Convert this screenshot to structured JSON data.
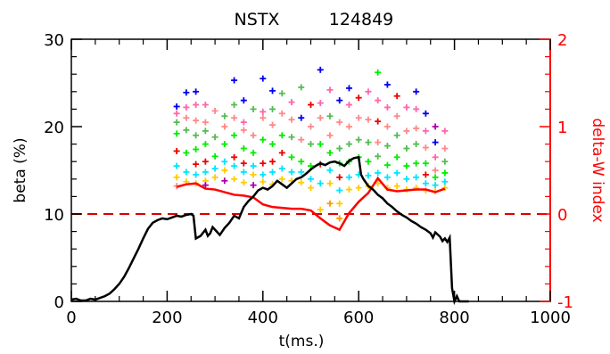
{
  "chart_data": {
    "type": "scatter",
    "title_left": "NSTX",
    "title_right": "124849",
    "xlabel": "t(ms.)",
    "ylabel": "beta   (%)",
    "ylabel_right": "delta-W index",
    "xlim": [
      0,
      1000
    ],
    "ylim": [
      0,
      30
    ],
    "ylim_right": [
      -1,
      2
    ],
    "x_ticks": [
      "0",
      "200",
      "400",
      "600",
      "800",
      "1000"
    ],
    "y_ticks": [
      "0",
      "10",
      "20",
      "30"
    ],
    "y_ticks_right": [
      "-1",
      "0",
      "1",
      "2"
    ],
    "colors": {
      "beta": "#000000",
      "right_axis": "#ff0000",
      "dw": "#ff0000",
      "zero_line": "#dd0000"
    },
    "marker_palette": [
      "#0000ee",
      "#ff66aa",
      "#ff8888",
      "#55bb55",
      "#00ee00",
      "#ee0000",
      "#00e5ff",
      "#ffcc00",
      "#aa00aa",
      "#ff9900"
    ],
    "beta_series": {
      "name": "beta",
      "x": [
        0,
        10,
        20,
        30,
        40,
        50,
        60,
        70,
        80,
        90,
        100,
        110,
        120,
        130,
        140,
        150,
        160,
        170,
        180,
        190,
        200,
        210,
        220,
        230,
        240,
        250,
        255,
        260,
        270,
        280,
        285,
        290,
        295,
        300,
        310,
        320,
        330,
        340,
        350,
        360,
        370,
        380,
        390,
        400,
        410,
        420,
        430,
        440,
        450,
        460,
        470,
        480,
        490,
        500,
        510,
        520,
        530,
        540,
        550,
        560,
        570,
        580,
        590,
        600,
        605,
        610,
        620,
        630,
        640,
        650,
        660,
        670,
        680,
        690,
        700,
        710,
        720,
        730,
        740,
        750,
        755,
        760,
        770,
        775,
        780,
        785,
        790,
        795,
        800,
        805,
        810,
        820,
        830
      ],
      "y": [
        0.2,
        0.3,
        0.1,
        0.1,
        0.3,
        0.2,
        0.4,
        0.6,
        0.9,
        1.4,
        2.0,
        2.8,
        3.8,
        4.9,
        6.0,
        7.2,
        8.3,
        9.0,
        9.3,
        9.5,
        9.4,
        9.6,
        9.8,
        9.7,
        9.9,
        10.0,
        9.8,
        7.2,
        7.5,
        8.2,
        7.5,
        7.8,
        8.5,
        8.2,
        7.6,
        8.4,
        9.0,
        9.8,
        9.5,
        10.8,
        11.5,
        12.0,
        12.7,
        13.0,
        12.8,
        13.2,
        13.8,
        13.4,
        13.0,
        13.5,
        14.0,
        14.2,
        14.6,
        15.1,
        15.5,
        15.8,
        15.6,
        15.9,
        16.0,
        15.8,
        15.5,
        16.1,
        16.4,
        16.5,
        14.5,
        14.0,
        13.2,
        12.8,
        12.2,
        11.8,
        11.2,
        10.8,
        10.3,
        9.9,
        9.6,
        9.2,
        8.9,
        8.5,
        8.2,
        7.8,
        7.3,
        7.9,
        7.4,
        6.9,
        7.2,
        6.8,
        7.3,
        1.5,
        0.0,
        0.6,
        0.0,
        0.0,
        0.0
      ]
    },
    "dw_series": {
      "name": "delta-W index",
      "x": [
        220,
        240,
        260,
        280,
        300,
        340,
        360,
        380,
        400,
        420,
        440,
        460,
        480,
        500,
        520,
        540,
        560,
        580,
        600,
        620,
        640,
        660,
        680,
        700,
        720,
        740,
        760,
        780
      ],
      "y": [
        0.31,
        0.34,
        0.35,
        0.29,
        0.28,
        0.22,
        0.21,
        0.19,
        0.11,
        0.08,
        0.07,
        0.06,
        0.06,
        0.04,
        -0.05,
        -0.13,
        -0.18,
        0.01,
        0.14,
        0.24,
        0.41,
        0.28,
        0.26,
        0.27,
        0.28,
        0.28,
        0.25,
        0.29
      ]
    },
    "mode_markers": {
      "name": "delta-W index (modes)",
      "x": [
        220,
        220,
        220,
        220,
        220,
        220,
        220,
        220,
        240,
        240,
        240,
        240,
        240,
        240,
        240,
        260,
        260,
        260,
        260,
        260,
        260,
        260,
        260,
        280,
        280,
        280,
        280,
        280,
        280,
        280,
        280,
        300,
        300,
        300,
        300,
        300,
        320,
        320,
        320,
        320,
        320,
        320,
        340,
        340,
        340,
        340,
        340,
        340,
        340,
        360,
        360,
        360,
        360,
        360,
        360,
        360,
        380,
        380,
        380,
        380,
        380,
        380,
        400,
        400,
        400,
        400,
        400,
        400,
        400,
        420,
        420,
        420,
        420,
        420,
        420,
        420,
        440,
        440,
        440,
        440,
        440,
        440,
        460,
        460,
        460,
        460,
        460,
        460,
        480,
        480,
        480,
        480,
        480,
        480,
        500,
        500,
        500,
        500,
        500,
        500,
        520,
        520,
        520,
        520,
        520,
        520,
        520,
        540,
        540,
        540,
        540,
        540,
        540,
        540,
        560,
        560,
        560,
        560,
        560,
        560,
        560,
        560,
        580,
        580,
        580,
        580,
        580,
        580,
        580,
        600,
        600,
        600,
        600,
        600,
        600,
        620,
        620,
        620,
        620,
        620,
        620,
        640,
        640,
        640,
        640,
        640,
        640,
        640,
        660,
        660,
        660,
        660,
        660,
        660,
        660,
        680,
        680,
        680,
        680,
        680,
        680,
        700,
        700,
        700,
        700,
        700,
        700,
        720,
        720,
        720,
        720,
        720,
        720,
        720,
        740,
        740,
        740,
        740,
        740,
        740,
        740,
        760,
        760,
        760,
        760,
        760,
        760,
        760,
        780,
        780,
        780,
        780,
        780,
        780
      ],
      "y": [
        1.23,
        1.15,
        1.05,
        0.92,
        0.72,
        0.55,
        0.42,
        0.32,
        1.39,
        1.22,
        1.1,
        0.96,
        0.7,
        0.48,
        0.37,
        1.4,
        1.25,
        1.07,
        0.9,
        0.74,
        0.57,
        0.45,
        0.35,
        1.25,
        1.05,
        0.95,
        0.8,
        0.6,
        0.48,
        0.38,
        0.33,
        1.18,
        0.88,
        0.66,
        0.52,
        0.42,
        1.12,
        1.0,
        0.8,
        0.6,
        0.5,
        0.38,
        1.53,
        1.25,
        1.1,
        0.9,
        0.65,
        0.55,
        0.4,
        1.3,
        1.05,
        0.96,
        0.75,
        0.58,
        0.48,
        0.36,
        1.2,
        0.9,
        0.7,
        0.55,
        0.45,
        0.33,
        1.55,
        1.17,
        1.1,
        0.85,
        0.58,
        0.45,
        0.37,
        1.41,
        1.2,
        1.02,
        0.8,
        0.6,
        0.48,
        0.34,
        1.38,
        1.15,
        0.9,
        0.7,
        0.52,
        0.4,
        1.28,
        1.08,
        0.88,
        0.65,
        0.48,
        0.38,
        1.45,
        1.1,
        0.85,
        0.6,
        0.48,
        0.36,
        1.25,
        1.0,
        0.8,
        0.55,
        0.4,
        0.3,
        1.65,
        1.27,
        1.1,
        0.8,
        0.57,
        0.35,
        0.05,
        1.42,
        1.12,
        0.9,
        0.7,
        0.5,
        0.35,
        0.12,
        1.3,
        1.05,
        0.75,
        0.58,
        0.42,
        0.27,
        0.12,
        -0.05,
        1.44,
        1.25,
        1.0,
        0.8,
        0.6,
        0.42,
        0.28,
        1.33,
        1.1,
        0.85,
        0.65,
        0.45,
        0.3,
        1.4,
        1.08,
        0.82,
        0.6,
        0.44,
        0.32,
        1.62,
        1.3,
        1.06,
        0.82,
        0.66,
        0.47,
        0.35,
        1.48,
        1.22,
        1.0,
        0.78,
        0.56,
        0.42,
        0.3,
        1.35,
        1.12,
        0.9,
        0.65,
        0.47,
        0.32,
        1.22,
        0.95,
        0.75,
        0.55,
        0.4,
        0.28,
        1.4,
        1.2,
        0.98,
        0.8,
        0.58,
        0.42,
        0.3,
        1.15,
        0.95,
        0.76,
        0.58,
        0.45,
        0.35,
        0.27,
        1.0,
        0.82,
        0.65,
        0.5,
        0.42,
        0.33,
        0.26,
        0.95,
        0.75,
        0.6,
        0.47,
        0.37,
        0.3
      ],
      "color_index": [
        0,
        1,
        3,
        4,
        5,
        6,
        7,
        2,
        0,
        1,
        2,
        3,
        4,
        6,
        7,
        0,
        1,
        2,
        3,
        4,
        5,
        6,
        7,
        1,
        2,
        3,
        4,
        5,
        6,
        7,
        8,
        2,
        3,
        4,
        6,
        7,
        3,
        2,
        4,
        6,
        7,
        8,
        0,
        3,
        2,
        4,
        5,
        6,
        7,
        0,
        1,
        2,
        4,
        5,
        6,
        7,
        3,
        2,
        4,
        6,
        7,
        8,
        0,
        1,
        2,
        4,
        5,
        6,
        7,
        0,
        3,
        2,
        4,
        5,
        6,
        7,
        3,
        2,
        4,
        5,
        6,
        7,
        1,
        2,
        3,
        4,
        6,
        7,
        3,
        0,
        2,
        4,
        6,
        7,
        5,
        2,
        3,
        4,
        6,
        7,
        0,
        1,
        2,
        4,
        5,
        6,
        7,
        1,
        3,
        2,
        4,
        6,
        7,
        9,
        0,
        2,
        3,
        4,
        5,
        6,
        7,
        9,
        0,
        1,
        2,
        3,
        4,
        6,
        7,
        5,
        2,
        3,
        4,
        6,
        7,
        1,
        2,
        3,
        4,
        6,
        7,
        4,
        1,
        5,
        2,
        3,
        6,
        7,
        0,
        1,
        2,
        3,
        4,
        6,
        7,
        5,
        2,
        3,
        4,
        6,
        7,
        1,
        2,
        3,
        4,
        6,
        7,
        0,
        1,
        2,
        3,
        4,
        6,
        7,
        0,
        1,
        2,
        4,
        5,
        6,
        7,
        8,
        0,
        1,
        2,
        4,
        6,
        7,
        1,
        2,
        3,
        4,
        6,
        7
      ]
    }
  }
}
